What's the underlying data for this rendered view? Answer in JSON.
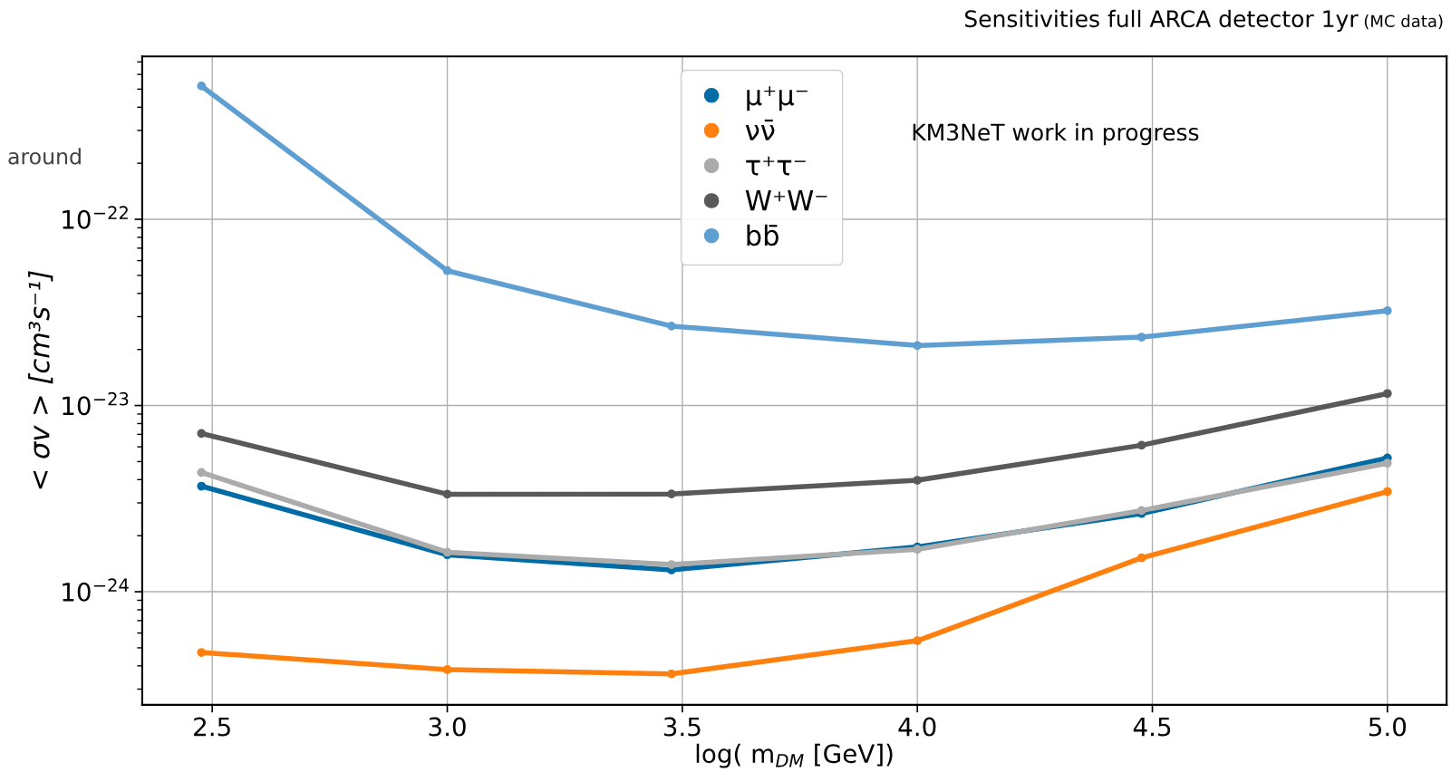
{
  "chart_data": {
    "type": "line",
    "title": "Sensitivities full ARCA detector 1yr",
    "subtitle": "(MC data)",
    "xlabel": "log( m$_{DM}$ [GeV])",
    "ylabel": "< σv > [cm³s⁻¹]",
    "annotations": [
      "KM3NeT work in progress",
      "around"
    ],
    "x": [
      2.477,
      3.0,
      3.477,
      4.0,
      4.477,
      5.0
    ],
    "series": [
      {
        "name": "μ⁺μ⁻",
        "color": "#006ba4",
        "values": [
          3.69e-24,
          1.58e-24,
          1.31e-24,
          1.74e-24,
          2.63e-24,
          5.23e-24
        ]
      },
      {
        "name": "νν̄",
        "color": "#ff800e",
        "values": [
          4.72e-25,
          3.82e-25,
          3.62e-25,
          5.46e-25,
          1.52e-24,
          3.45e-24
        ]
      },
      {
        "name": "τ⁺τ⁻",
        "color": "#ababab",
        "values": [
          4.37e-24,
          1.63e-24,
          1.4e-24,
          1.69e-24,
          2.73e-24,
          4.9e-24
        ]
      },
      {
        "name": "W⁺W⁻",
        "color": "#595959",
        "values": [
          7.08e-24,
          3.34e-24,
          3.35e-24,
          3.97e-24,
          6.12e-24,
          1.16e-23
        ]
      },
      {
        "name": "bb̄",
        "color": "#5f9ed1",
        "values": [
          5.2e-22,
          5.3e-23,
          2.67e-23,
          2.1e-23,
          2.33e-23,
          3.23e-23
        ]
      }
    ],
    "log": "y",
    "xlim": [
      2.351,
      5.126
    ],
    "ylim": [
      2.47e-25,
      7.5e-22
    ],
    "xticks": [
      2.5,
      {
        "value": 3,
        "label": "3.0"
      },
      3.5,
      {
        "value": 4,
        "label": "4.0"
      },
      4.5,
      {
        "value": 5,
        "label": "5.0"
      }
    ],
    "yticks": [
      {
        "value": 1e-24,
        "label": "10$^{−24}$"
      },
      {
        "value": 1e-23,
        "label": "10$^{−23}$"
      },
      {
        "value": 1e-22,
        "label": "10$^{−22}$"
      }
    ],
    "grid": true,
    "legend": "top",
    "marker": "circle",
    "line_style": "solid"
  }
}
